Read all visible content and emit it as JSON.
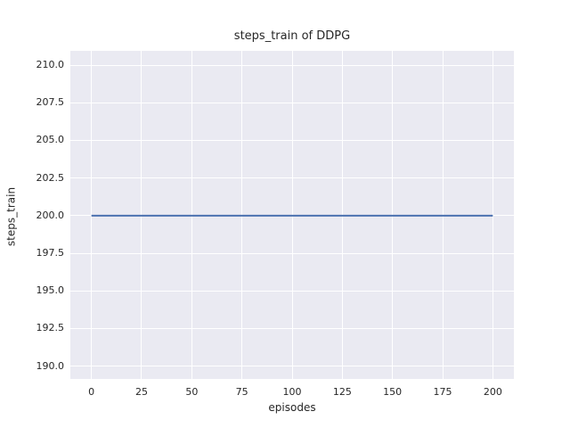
{
  "chart_data": {
    "type": "line",
    "title": "steps_train of DDPG",
    "xlabel": "episodes",
    "ylabel": "steps_train",
    "xlim": [
      -10.5,
      210.5
    ],
    "ylim": [
      189.15,
      210.95
    ],
    "grid": true,
    "legend_position": "none",
    "x_ticks": [
      {
        "value": 0,
        "label": "0"
      },
      {
        "value": 25,
        "label": "25"
      },
      {
        "value": 50,
        "label": "50"
      },
      {
        "value": 75,
        "label": "75"
      },
      {
        "value": 100,
        "label": "100"
      },
      {
        "value": 125,
        "label": "125"
      },
      {
        "value": 150,
        "label": "150"
      },
      {
        "value": 175,
        "label": "175"
      },
      {
        "value": 200,
        "label": "200"
      }
    ],
    "y_ticks": [
      {
        "value": 190.0,
        "label": "190.0"
      },
      {
        "value": 192.5,
        "label": "192.5"
      },
      {
        "value": 195.0,
        "label": "195.0"
      },
      {
        "value": 197.5,
        "label": "197.5"
      },
      {
        "value": 200.0,
        "label": "200.0"
      },
      {
        "value": 202.5,
        "label": "202.5"
      },
      {
        "value": 205.0,
        "label": "205.0"
      },
      {
        "value": 207.5,
        "label": "207.5"
      },
      {
        "value": 210.0,
        "label": "210.0"
      }
    ],
    "series": [
      {
        "name": "steps_train",
        "color": "#4c72b0",
        "line_width": 2,
        "x": [
          0,
          200
        ],
        "y": [
          200,
          200
        ]
      }
    ],
    "colors": {
      "figure_background": "#ffffff",
      "axes_background": "#eaeaf2",
      "gridline": "#ffffff",
      "text": "#262626"
    }
  }
}
